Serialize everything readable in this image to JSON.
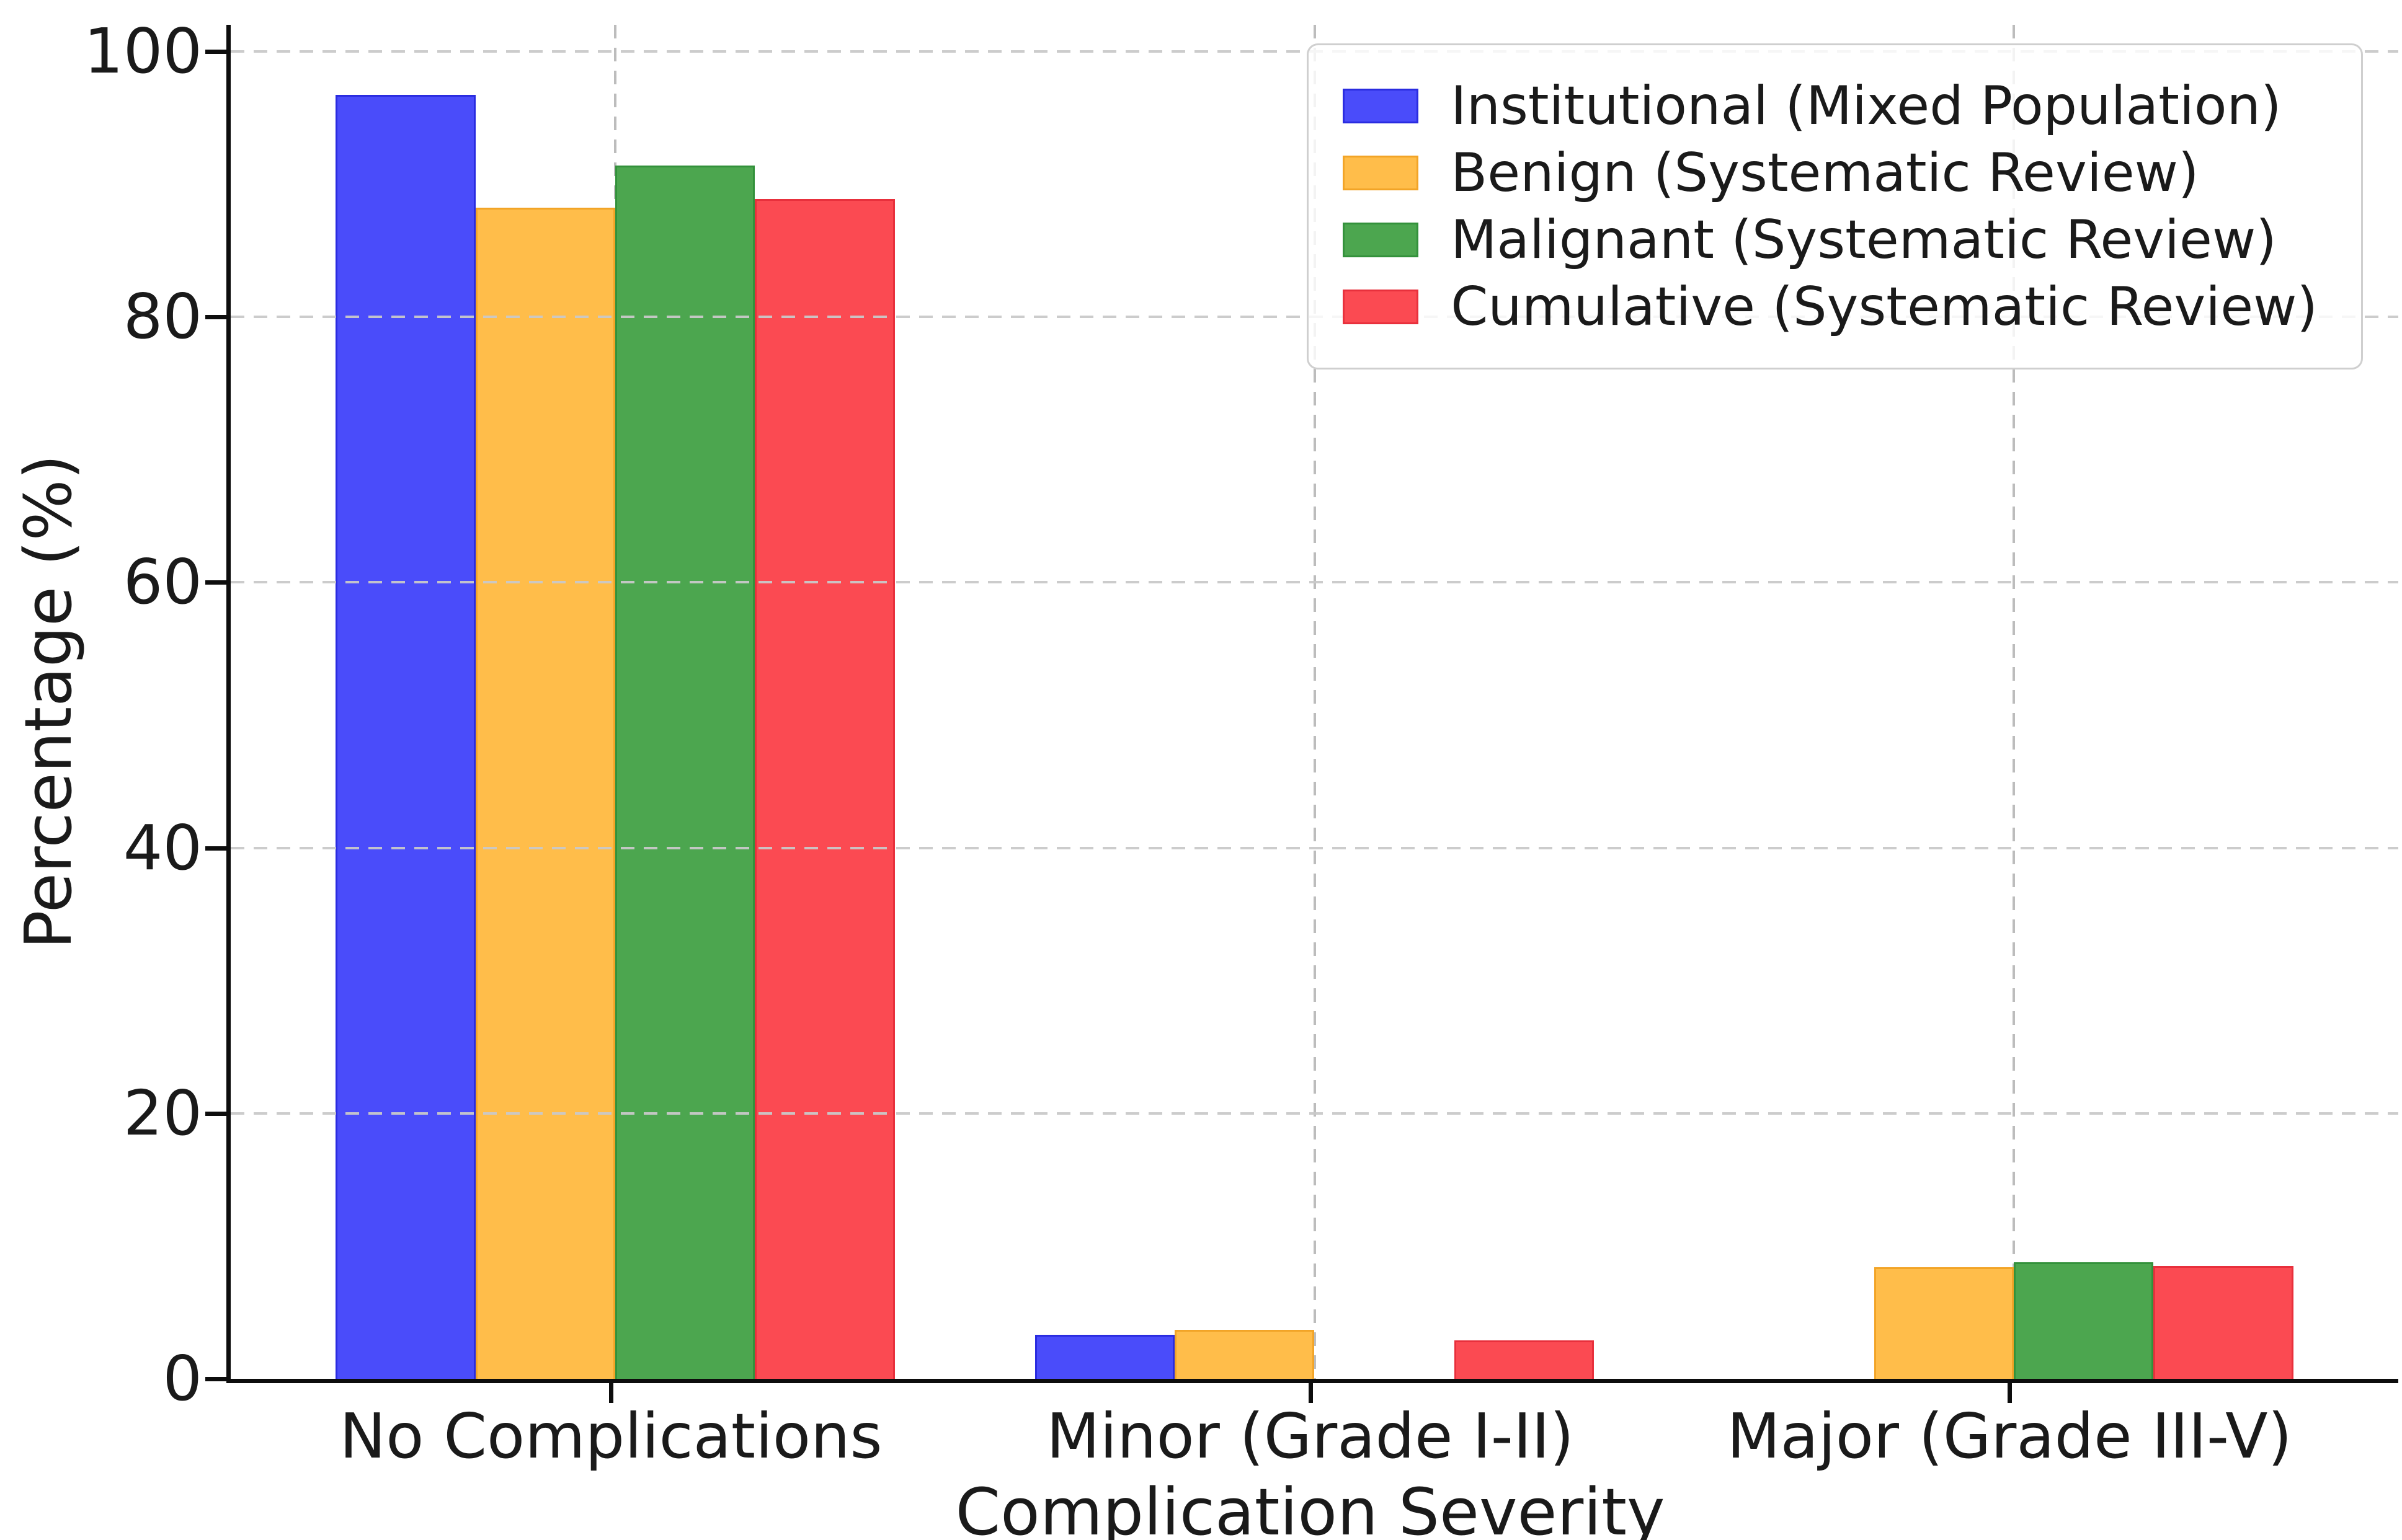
{
  "chart_data": {
    "type": "bar",
    "title": "",
    "xlabel": "Complication Severity",
    "ylabel": "Percentage (%)",
    "categories": [
      "No Complications",
      "Minor (Grade I-II)",
      "Major (Grade III-V)"
    ],
    "series": [
      {
        "name": "Institutional (Mixed Population)",
        "color": "#4A4CFA",
        "edge_color": "#2A2CE0",
        "values": [
          96.7,
          3.3,
          0
        ]
      },
      {
        "name": "Benign (Systematic Review)",
        "color": "#FFBD4A",
        "edge_color": "#F2A427",
        "values": [
          88.2,
          3.7,
          8.4
        ]
      },
      {
        "name": "Malignant (Systematic Review)",
        "color": "#4CA64F",
        "edge_color": "#33913B",
        "values": [
          91.4,
          0,
          8.8
        ]
      },
      {
        "name": "Cumulative (Systematic Review)",
        "color": "#FB4A52",
        "edge_color": "#E8303C",
        "values": [
          88.9,
          2.9,
          8.5
        ]
      }
    ],
    "ylim": [
      0,
      102
    ],
    "yticks": [
      0,
      20,
      40,
      60,
      80,
      100
    ],
    "category_centers_pct": [
      17.74,
      50,
      82.26
    ],
    "group_width_pct": 25.8,
    "grid": {
      "style": "dashed",
      "color": "#c9c9c9",
      "horizontal": true,
      "vertical": true
    },
    "legend": {
      "position": "upper right"
    }
  },
  "axes": {
    "spine_color": "#0d0d0d",
    "tick_color": "#0d0d0d",
    "text_color": "#1a1a1a"
  }
}
